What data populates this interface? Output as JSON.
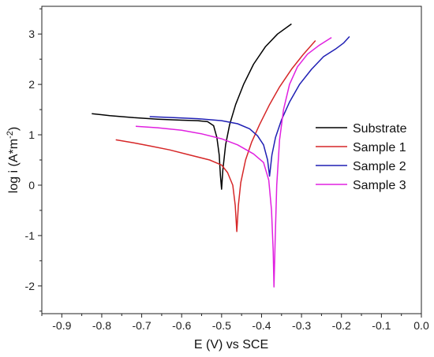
{
  "chart_data": {
    "type": "line",
    "title": "",
    "xlabel": "E (V) vs SCE",
    "ylabel_main": "log i (A*m",
    "ylabel_sup": "-2",
    "ylabel_end": ")",
    "xlim": [
      -0.95,
      0.0
    ],
    "ylim": [
      -2.55,
      3.55
    ],
    "xticks": [
      -0.9,
      -0.8,
      -0.7,
      -0.6,
      -0.5,
      -0.4,
      -0.3,
      -0.2,
      -0.1,
      0.0
    ],
    "xtick_labels": [
      "-0.9",
      "-0.8",
      "-0.7",
      "-0.6",
      "-0.5",
      "-0.4",
      "-0.3",
      "-0.2",
      "-0.1",
      "0.0"
    ],
    "yticks": [
      -2,
      -1,
      0,
      1,
      2,
      3
    ],
    "ytick_labels": [
      "-2",
      "-1",
      "0",
      "1",
      "2",
      "3"
    ],
    "grid": false,
    "legend_position": "right",
    "series": [
      {
        "name": "Substrate",
        "color": "#000000",
        "points": [
          [
            -0.825,
            1.42
          ],
          [
            -0.78,
            1.38
          ],
          [
            -0.72,
            1.34
          ],
          [
            -0.66,
            1.31
          ],
          [
            -0.6,
            1.29
          ],
          [
            -0.56,
            1.28
          ],
          [
            -0.535,
            1.26
          ],
          [
            -0.52,
            1.18
          ],
          [
            -0.512,
            0.95
          ],
          [
            -0.506,
            0.6
          ],
          [
            -0.503,
            0.2
          ],
          [
            -0.5,
            -0.08
          ],
          [
            -0.497,
            0.3
          ],
          [
            -0.49,
            0.8
          ],
          [
            -0.48,
            1.2
          ],
          [
            -0.465,
            1.6
          ],
          [
            -0.445,
            2.0
          ],
          [
            -0.42,
            2.4
          ],
          [
            -0.39,
            2.75
          ],
          [
            -0.36,
            3.0
          ],
          [
            -0.325,
            3.2
          ]
        ]
      },
      {
        "name": "Sample 1",
        "color": "#d62728",
        "points": [
          [
            -0.765,
            0.9
          ],
          [
            -0.72,
            0.84
          ],
          [
            -0.68,
            0.78
          ],
          [
            -0.63,
            0.7
          ],
          [
            -0.58,
            0.6
          ],
          [
            -0.53,
            0.5
          ],
          [
            -0.5,
            0.4
          ],
          [
            -0.485,
            0.25
          ],
          [
            -0.472,
            0.0
          ],
          [
            -0.466,
            -0.4
          ],
          [
            -0.462,
            -0.92
          ],
          [
            -0.458,
            -0.4
          ],
          [
            -0.452,
            0.05
          ],
          [
            -0.44,
            0.5
          ],
          [
            -0.425,
            0.85
          ],
          [
            -0.405,
            1.2
          ],
          [
            -0.38,
            1.6
          ],
          [
            -0.355,
            1.95
          ],
          [
            -0.325,
            2.3
          ],
          [
            -0.295,
            2.6
          ],
          [
            -0.265,
            2.87
          ]
        ]
      },
      {
        "name": "Sample 2",
        "color": "#1f1fb4",
        "points": [
          [
            -0.68,
            1.36
          ],
          [
            -0.62,
            1.34
          ],
          [
            -0.56,
            1.32
          ],
          [
            -0.5,
            1.28
          ],
          [
            -0.46,
            1.22
          ],
          [
            -0.43,
            1.12
          ],
          [
            -0.41,
            0.98
          ],
          [
            -0.395,
            0.8
          ],
          [
            -0.385,
            0.5
          ],
          [
            -0.38,
            0.18
          ],
          [
            -0.374,
            0.6
          ],
          [
            -0.365,
            0.95
          ],
          [
            -0.35,
            1.3
          ],
          [
            -0.33,
            1.65
          ],
          [
            -0.305,
            2.0
          ],
          [
            -0.275,
            2.3
          ],
          [
            -0.245,
            2.55
          ],
          [
            -0.215,
            2.7
          ],
          [
            -0.195,
            2.82
          ],
          [
            -0.18,
            2.95
          ]
        ]
      },
      {
        "name": "Sample 3",
        "color": "#e020e0",
        "points": [
          [
            -0.715,
            1.17
          ],
          [
            -0.66,
            1.14
          ],
          [
            -0.6,
            1.09
          ],
          [
            -0.55,
            1.02
          ],
          [
            -0.5,
            0.92
          ],
          [
            -0.46,
            0.8
          ],
          [
            -0.42,
            0.62
          ],
          [
            -0.395,
            0.45
          ],
          [
            -0.382,
            0.1
          ],
          [
            -0.375,
            -0.5
          ],
          [
            -0.371,
            -1.3
          ],
          [
            -0.369,
            -2.02
          ],
          [
            -0.366,
            -1.1
          ],
          [
            -0.362,
            0.0
          ],
          [
            -0.355,
            0.9
          ],
          [
            -0.345,
            1.5
          ],
          [
            -0.33,
            2.0
          ],
          [
            -0.31,
            2.35
          ],
          [
            -0.285,
            2.6
          ],
          [
            -0.255,
            2.78
          ],
          [
            -0.225,
            2.93
          ]
        ]
      }
    ]
  }
}
